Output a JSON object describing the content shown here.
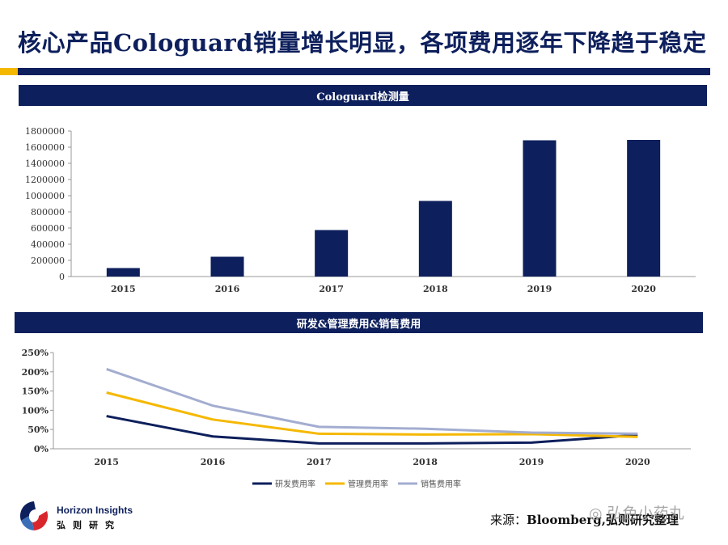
{
  "page": {
    "title": "核心产品Cologuard销量增长明显，各项费用逐年下降趋于稳定",
    "source_label": "来源：",
    "source_text": "Bloomberg,弘则研究整理",
    "watermark": "弘色小药丸",
    "logo_name": "Horizon Insights",
    "logo_cn": "弘则研究"
  },
  "colors": {
    "navy": "#0d1f5c",
    "yellow": "#f5b800",
    "lavender": "#a3add0"
  },
  "chart_data": [
    {
      "type": "bar",
      "title": "Cologuard检测量",
      "categories": [
        "2015",
        "2016",
        "2017",
        "2018",
        "2019",
        "2020"
      ],
      "values": [
        105000,
        245000,
        575000,
        935000,
        1685000,
        1690000
      ],
      "ylim": [
        0,
        1800000
      ],
      "yticks": [
        "1800000",
        "1600000",
        "1400000",
        "1200000",
        "1000000",
        "800000",
        "600000",
        "400000",
        "200000",
        "0"
      ],
      "grid": false,
      "color": "#0d1f5c"
    },
    {
      "type": "line",
      "title": "研发&管理费用&销售费用",
      "categories": [
        "2015",
        "2016",
        "2017",
        "2018",
        "2019",
        "2020"
      ],
      "ylim": [
        0,
        250
      ],
      "yticks": [
        "250%",
        "200%",
        "150%",
        "100%",
        "50%",
        "0%"
      ],
      "grid": false,
      "legend_position": "bottom",
      "series": [
        {
          "name": "研发费用率",
          "color": "#0d1f5c",
          "values": [
            85,
            32,
            14,
            14,
            16,
            36
          ]
        },
        {
          "name": "管理费用率",
          "color": "#f5b800",
          "values": [
            146,
            76,
            39,
            37,
            38,
            31
          ]
        },
        {
          "name": "销售费用率",
          "color": "#a3add0",
          "values": [
            207,
            112,
            57,
            52,
            42,
            39
          ]
        }
      ]
    }
  ]
}
